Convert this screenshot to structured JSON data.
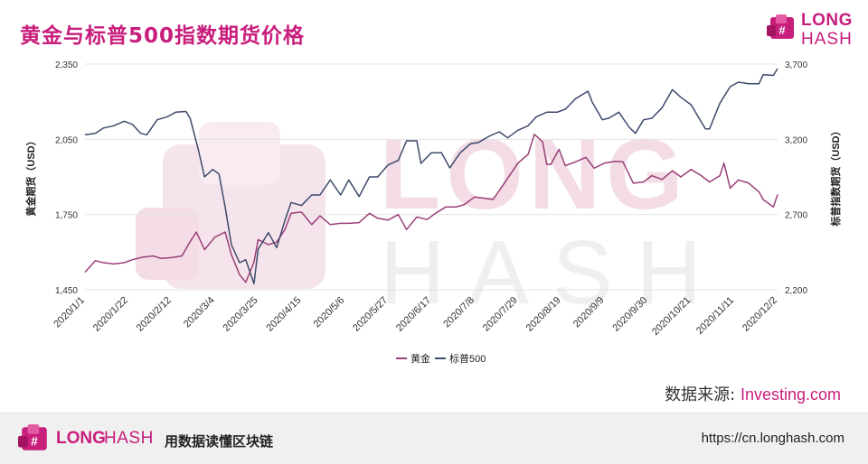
{
  "header": {
    "title": "黄金与标普500指数期货价格",
    "logo_line1": "LONG",
    "logo_line2": "HASH"
  },
  "watermark": {
    "line1": "LONG",
    "line2": "HASH"
  },
  "source": {
    "label": "数据来源:",
    "value": "Investing.com"
  },
  "footer": {
    "logo_line1": "LONG",
    "logo_line2": "HASH",
    "slogan": "用数据读懂区块链",
    "url": "https://cn.longhash.com"
  },
  "colors": {
    "gold": "#9a3f78",
    "sp500": "#3e4a6a",
    "accent": "#c81e7c"
  },
  "chart_data": {
    "type": "line",
    "title": "黄金与标普500指数期货价格",
    "x_ticks": [
      "2020/1/1",
      "2020/1/22",
      "2020/2/12",
      "2020/3/4",
      "2020/3/25",
      "2020/4/15",
      "2020/5/6",
      "2020/5/27",
      "2020/6/17",
      "2020/7/8",
      "2020/7/29",
      "2020/8/19",
      "2020/9/9",
      "2020/9/30",
      "2020/10/21",
      "2020/11/11",
      "2020/12/2"
    ],
    "x_range": [
      "2020/1/1",
      "2020/12/2"
    ],
    "y_left": {
      "label": "黄金期货（USD）",
      "range": [
        1450,
        2350
      ],
      "ticks": [
        "1,450",
        "1,750",
        "2,050",
        "2,350"
      ]
    },
    "y_right": {
      "label": "标普指数期货（USD）",
      "range": [
        2200,
        3700
      ],
      "ticks": [
        "2,200",
        "2,700",
        "3,200",
        "3,700"
      ]
    },
    "grid": true,
    "legend_position": "bottom",
    "series": [
      {
        "name": "黄金",
        "axis": "left",
        "points": [
          [
            "2020/1/1",
            1520
          ],
          [
            "2020/1/6",
            1566
          ],
          [
            "2020/1/10",
            1558
          ],
          [
            "2020/1/15",
            1553
          ],
          [
            "2020/1/20",
            1558
          ],
          [
            "2020/1/24",
            1570
          ],
          [
            "2020/1/29",
            1580
          ],
          [
            "2020/2/3",
            1585
          ],
          [
            "2020/2/7",
            1575
          ],
          [
            "2020/2/12",
            1578
          ],
          [
            "2020/2/17",
            1585
          ],
          [
            "2020/2/21",
            1642
          ],
          [
            "2020/2/24",
            1680
          ],
          [
            "2020/2/26",
            1645
          ],
          [
            "2020/2/28",
            1610
          ],
          [
            "2020/3/4",
            1660
          ],
          [
            "2020/3/9",
            1680
          ],
          [
            "2020/3/12",
            1590
          ],
          [
            "2020/3/16",
            1510
          ],
          [
            "2020/3/19",
            1480
          ],
          [
            "2020/3/23",
            1560
          ],
          [
            "2020/3/25",
            1650
          ],
          [
            "2020/3/30",
            1630
          ],
          [
            "2020/4/3",
            1640
          ],
          [
            "2020/4/7",
            1690
          ],
          [
            "2020/4/10",
            1755
          ],
          [
            "2020/4/15",
            1760
          ],
          [
            "2020/4/20",
            1710
          ],
          [
            "2020/4/24",
            1745
          ],
          [
            "2020/4/29",
            1710
          ],
          [
            "2020/5/4",
            1715
          ],
          [
            "2020/5/8",
            1715
          ],
          [
            "2020/5/13",
            1718
          ],
          [
            "2020/5/18",
            1755
          ],
          [
            "2020/5/22",
            1735
          ],
          [
            "2020/5/27",
            1728
          ],
          [
            "2020/6/1",
            1750
          ],
          [
            "2020/6/5",
            1690
          ],
          [
            "2020/6/10",
            1740
          ],
          [
            "2020/6/15",
            1730
          ],
          [
            "2020/6/19",
            1755
          ],
          [
            "2020/6/24",
            1780
          ],
          [
            "2020/6/29",
            1780
          ],
          [
            "2020/7/3",
            1790
          ],
          [
            "2020/7/8",
            1820
          ],
          [
            "2020/7/13",
            1815
          ],
          [
            "2020/7/17",
            1810
          ],
          [
            "2020/7/22",
            1870
          ],
          [
            "2020/7/27",
            1930
          ],
          [
            "2020/7/29",
            1955
          ],
          [
            "2020/8/3",
            1990
          ],
          [
            "2020/8/6",
            2070
          ],
          [
            "2020/8/10",
            2040
          ],
          [
            "2020/8/12",
            1950
          ],
          [
            "2020/8/14",
            1950
          ],
          [
            "2020/8/18",
            2010
          ],
          [
            "2020/8/21",
            1945
          ],
          [
            "2020/8/26",
            1960
          ],
          [
            "2020/8/31",
            1978
          ],
          [
            "2020/9/4",
            1935
          ],
          [
            "2020/9/9",
            1955
          ],
          [
            "2020/9/14",
            1962
          ],
          [
            "2020/9/18",
            1960
          ],
          [
            "2020/9/23",
            1875
          ],
          [
            "2020/9/28",
            1880
          ],
          [
            "2020/10/2",
            1905
          ],
          [
            "2020/10/7",
            1890
          ],
          [
            "2020/10/12",
            1925
          ],
          [
            "2020/10/16",
            1900
          ],
          [
            "2020/10/21",
            1930
          ],
          [
            "2020/10/26",
            1905
          ],
          [
            "2020/10/30",
            1880
          ],
          [
            "2020/11/4",
            1905
          ],
          [
            "2020/11/6",
            1955
          ],
          [
            "2020/11/9",
            1855
          ],
          [
            "2020/11/13",
            1888
          ],
          [
            "2020/11/18",
            1875
          ],
          [
            "2020/11/23",
            1840
          ],
          [
            "2020/11/25",
            1810
          ],
          [
            "2020/11/30",
            1780
          ],
          [
            "2020/12/2",
            1830
          ]
        ]
      },
      {
        "name": "标普500",
        "axis": "right",
        "points": [
          [
            "2020/1/1",
            3230
          ],
          [
            "2020/1/6",
            3240
          ],
          [
            "2020/1/10",
            3275
          ],
          [
            "2020/1/15",
            3290
          ],
          [
            "2020/1/20",
            3320
          ],
          [
            "2020/1/24",
            3300
          ],
          [
            "2020/1/28",
            3240
          ],
          [
            "2020/1/31",
            3230
          ],
          [
            "2020/2/5",
            3330
          ],
          [
            "2020/2/10",
            3350
          ],
          [
            "2020/2/14",
            3380
          ],
          [
            "2020/2/19",
            3385
          ],
          [
            "2020/2/21",
            3340
          ],
          [
            "2020/2/25",
            3130
          ],
          [
            "2020/2/28",
            2950
          ],
          [
            "2020/3/3",
            3000
          ],
          [
            "2020/3/6",
            2970
          ],
          [
            "2020/3/9",
            2750
          ],
          [
            "2020/3/12",
            2500
          ],
          [
            "2020/3/16",
            2380
          ],
          [
            "2020/3/19",
            2400
          ],
          [
            "2020/3/23",
            2240
          ],
          [
            "2020/3/25",
            2470
          ],
          [
            "2020/3/30",
            2580
          ],
          [
            "2020/4/3",
            2480
          ],
          [
            "2020/4/7",
            2660
          ],
          [
            "2020/4/10",
            2780
          ],
          [
            "2020/4/15",
            2760
          ],
          [
            "2020/4/20",
            2830
          ],
          [
            "2020/4/24",
            2830
          ],
          [
            "2020/4/29",
            2930
          ],
          [
            "2020/5/4",
            2830
          ],
          [
            "2020/5/8",
            2930
          ],
          [
            "2020/5/13",
            2820
          ],
          [
            "2020/5/18",
            2950
          ],
          [
            "2020/5/22",
            2950
          ],
          [
            "2020/5/27",
            3030
          ],
          [
            "2020/6/1",
            3060
          ],
          [
            "2020/6/5",
            3190
          ],
          [
            "2020/6/10",
            3190
          ],
          [
            "2020/6/12",
            3040
          ],
          [
            "2020/6/17",
            3110
          ],
          [
            "2020/6/22",
            3110
          ],
          [
            "2020/6/26",
            3010
          ],
          [
            "2020/7/1",
            3110
          ],
          [
            "2020/7/6",
            3170
          ],
          [
            "2020/7/10",
            3180
          ],
          [
            "2020/7/15",
            3220
          ],
          [
            "2020/7/20",
            3250
          ],
          [
            "2020/7/24",
            3210
          ],
          [
            "2020/7/29",
            3260
          ],
          [
            "2020/8/3",
            3290
          ],
          [
            "2020/8/7",
            3350
          ],
          [
            "2020/8/12",
            3380
          ],
          [
            "2020/8/17",
            3380
          ],
          [
            "2020/8/21",
            3400
          ],
          [
            "2020/8/26",
            3470
          ],
          [
            "2020/9/1",
            3520
          ],
          [
            "2020/9/3",
            3450
          ],
          [
            "2020/9/8",
            3330
          ],
          [
            "2020/9/11",
            3340
          ],
          [
            "2020/9/16",
            3380
          ],
          [
            "2020/9/21",
            3280
          ],
          [
            "2020/9/24",
            3240
          ],
          [
            "2020/9/28",
            3330
          ],
          [
            "2020/10/2",
            3340
          ],
          [
            "2020/10/7",
            3410
          ],
          [
            "2020/10/12",
            3530
          ],
          [
            "2020/10/16",
            3480
          ],
          [
            "2020/10/21",
            3430
          ],
          [
            "2020/10/28",
            3270
          ],
          [
            "2020/10/30",
            3270
          ],
          [
            "2020/11/4",
            3440
          ],
          [
            "2020/11/9",
            3550
          ],
          [
            "2020/11/13",
            3580
          ],
          [
            "2020/11/18",
            3570
          ],
          [
            "2020/11/23",
            3570
          ],
          [
            "2020/11/25",
            3630
          ],
          [
            "2020/11/30",
            3625
          ],
          [
            "2020/12/2",
            3670
          ]
        ]
      }
    ]
  }
}
